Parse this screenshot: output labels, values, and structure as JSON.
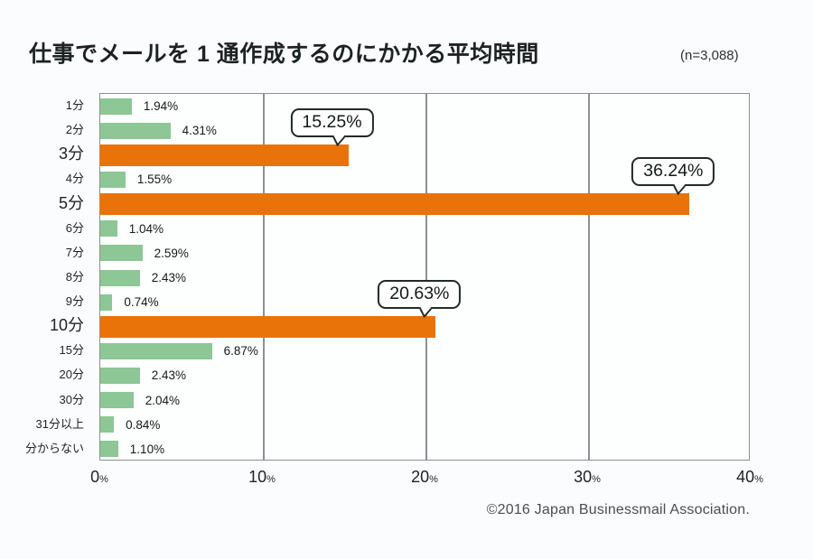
{
  "header": {
    "title": "仕事でメールを 1 通作成するのにかかる平均時間",
    "sample_size": "(n=3,088)"
  },
  "chart_data": {
    "type": "bar",
    "orientation": "horizontal",
    "title": "仕事でメールを 1 通作成するのにかかる平均時間",
    "sample_size": "(n=3,088)",
    "categories": [
      "1分",
      "2分",
      "3分",
      "4分",
      "5分",
      "6分",
      "7分",
      "8分",
      "9分",
      "10分",
      "15分",
      "20分",
      "30分",
      "31分以上",
      "分からない"
    ],
    "values": [
      1.94,
      4.31,
      15.25,
      1.55,
      36.24,
      1.04,
      2.59,
      2.43,
      0.74,
      20.63,
      6.87,
      2.43,
      2.04,
      0.84,
      1.1
    ],
    "display_values": [
      "1.94%",
      "4.31%",
      "15.25%",
      "1.55%",
      "36.24%",
      "1.04%",
      "2.59%",
      "2.43%",
      "0.74%",
      "20.63%",
      "6.87%",
      "2.43%",
      "2.04%",
      "0.84%",
      "1.10%"
    ],
    "highlighted_indices": [
      2,
      4,
      9
    ],
    "callouts": [
      {
        "category": "3分",
        "label": "15.25%"
      },
      {
        "category": "5分",
        "label": "36.24%"
      },
      {
        "category": "10分",
        "label": "20.63%"
      }
    ],
    "xlabel": "",
    "ylabel": "",
    "xlim": [
      0,
      40
    ],
    "x_ticks": [
      "0",
      "10",
      "20",
      "30",
      "40"
    ],
    "x_tick_suffix": "%",
    "grid": true,
    "legend": "none",
    "colors": {
      "bar_green": "#8cc795",
      "bar_orange": "#e97309",
      "axis": "#8b9194",
      "callout_border": "#242a2a"
    }
  },
  "footer": {
    "copyright": "©2016 Japan Businessmail Association."
  }
}
